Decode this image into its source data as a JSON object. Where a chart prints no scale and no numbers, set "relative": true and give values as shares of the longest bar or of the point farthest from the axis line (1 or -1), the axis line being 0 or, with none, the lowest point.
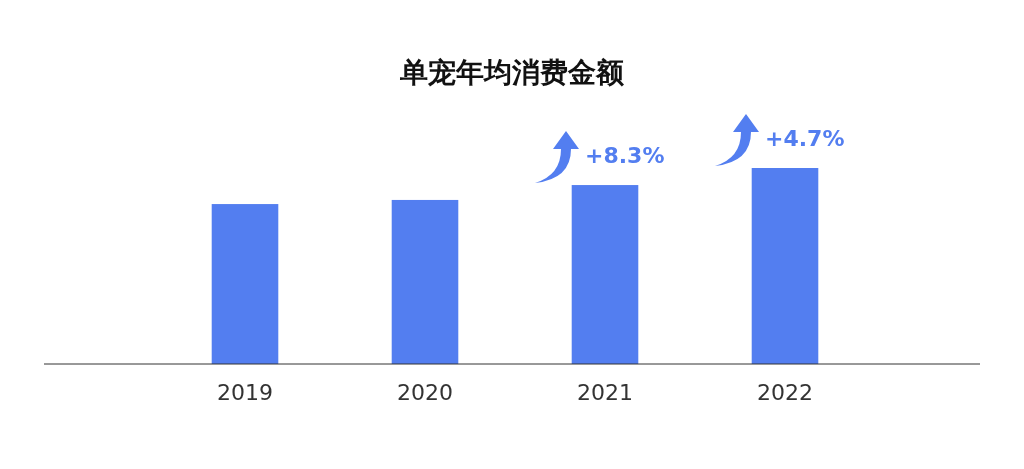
{
  "chart_data": {
    "type": "bar",
    "title": "单宠年均消费金额",
    "relative": true,
    "categories": [
      "2019",
      "2020",
      "2021",
      "2022"
    ],
    "series": [
      {
        "color": "#537ef0",
        "values": [
          0.816,
          0.837,
          0.913,
          1
        ]
      }
    ],
    "annotations": [
      "+8.3%",
      "+4.7%"
    ]
  }
}
